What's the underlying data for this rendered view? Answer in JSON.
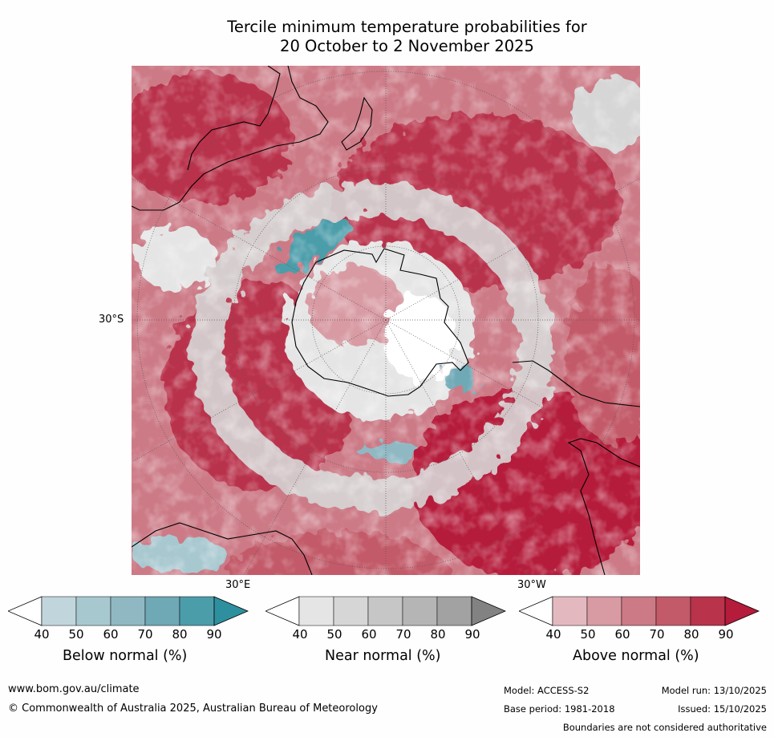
{
  "title": {
    "line1": "Tercile minimum temperature probabilities for",
    "line2": "20 October to 2 November 2025"
  },
  "map": {
    "projection": "south-polar",
    "lat_label_30s": "30°S",
    "lon_label_30e": "30°E",
    "lon_label_30w": "30°W"
  },
  "colorbars": [
    {
      "name": "Below normal (%)",
      "ticks": [
        "40",
        "50",
        "60",
        "70",
        "80",
        "90"
      ],
      "colors": [
        "#c0d6dc",
        "#a8c8d0",
        "#8fb8c3",
        "#6fa9b6",
        "#4c9daa"
      ],
      "extend_color": "#2e8f9e"
    },
    {
      "name": "Near normal (%)",
      "ticks": [
        "40",
        "50",
        "60",
        "70",
        "80",
        "90"
      ],
      "colors": [
        "#e5e5e5",
        "#d6d6d6",
        "#c6c6c6",
        "#b5b5b5",
        "#a2a2a2"
      ],
      "extend_color": "#828282"
    },
    {
      "name": "Above normal (%)",
      "ticks": [
        "40",
        "50",
        "60",
        "70",
        "80",
        "90"
      ],
      "colors": [
        "#e3b9bf",
        "#d89aa3",
        "#cc7a86",
        "#c35a69",
        "#b9334b"
      ],
      "extend_color": "#b51b3a"
    }
  ],
  "footer": {
    "url": "www.bom.gov.au/climate",
    "copyright": "© Commonwealth of Australia 2025, Australian Bureau of Meteorology",
    "model": "Model: ACCESS-S2",
    "model_run": "Model run: 13/10/2025",
    "base_period": "Base period: 1981-2018",
    "issued": "Issued: 15/10/2025",
    "disclaimer": "Boundaries are not considered authoritative"
  },
  "colors": {
    "above_strong": "#b51b3a",
    "above_mid": "#c35a69",
    "above_light": "#d89aa3",
    "near": "#d6d6d6",
    "below": "#4c9daa",
    "land_outline": "#000000"
  }
}
